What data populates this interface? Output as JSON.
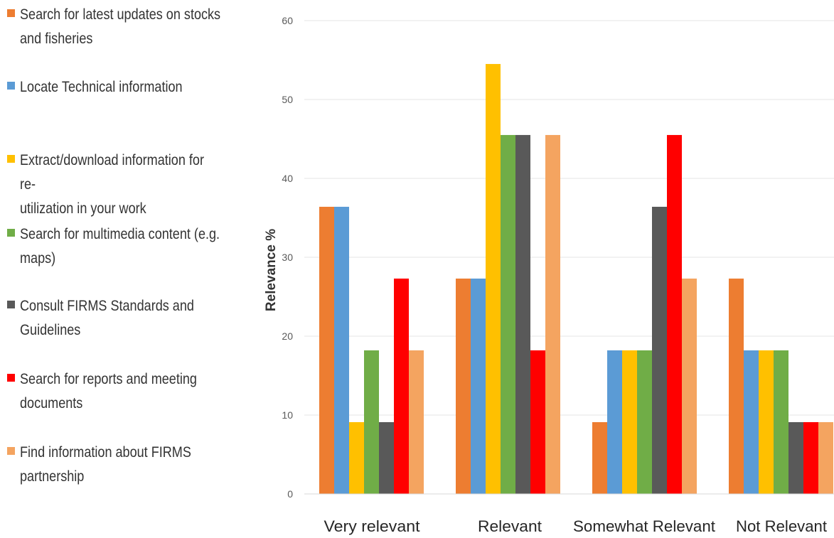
{
  "chart_data": {
    "type": "bar",
    "title": "",
    "xlabel": "",
    "ylabel": "Relevance %",
    "ylim": [
      0,
      60
    ],
    "yticks": [
      0,
      10,
      20,
      30,
      40,
      50,
      60
    ],
    "grid": true,
    "legend_position": "left",
    "categories": [
      "Very relevant",
      "Relevant",
      "Somewhat Relevant",
      "Not Relevant"
    ],
    "series": [
      {
        "name": "Search for latest updates on stocks and fisheries",
        "color": "#ED7D31",
        "values": [
          36.4,
          27.3,
          9.1,
          27.3
        ]
      },
      {
        "name": "Locate Technical information",
        "color": "#5B9BD5",
        "values": [
          36.4,
          27.3,
          18.2,
          18.2
        ]
      },
      {
        "name": "Extract/download information for re-utilization in your work",
        "color": "#FFC000",
        "values": [
          9.1,
          54.5,
          18.2,
          18.2
        ]
      },
      {
        "name": "Search for multimedia content (e.g. maps)",
        "color": "#70AD47",
        "values": [
          18.2,
          45.5,
          18.2,
          18.2
        ]
      },
      {
        "name": "Consult FIRMS Standards and Guidelines",
        "color": "#595959",
        "values": [
          9.1,
          45.5,
          36.4,
          9.1
        ]
      },
      {
        "name": "Search for reports and meeting documents",
        "color": "#FF0000",
        "values": [
          27.3,
          18.2,
          45.5,
          9.1
        ]
      },
      {
        "name": "Find information about FIRMS partnership",
        "color": "#F4A460",
        "values": [
          18.2,
          45.5,
          27.3,
          9.1
        ]
      }
    ]
  },
  "legend": {
    "items": [
      {
        "label": "Search for latest updates on stocks\nand fisheries",
        "color": "#ED7D31"
      },
      {
        "label": "Locate Technical information",
        "color": "#5B9BD5"
      },
      {
        "label": "Extract/download information for re-\nutilization in your work",
        "color": "#FFC000"
      },
      {
        "label": "Search for multimedia content (e.g.\nmaps)",
        "color": "#70AD47"
      },
      {
        "label": "Consult FIRMS Standards and\nGuidelines",
        "color": "#595959"
      },
      {
        "label": "Search for reports and meeting\ndocuments",
        "color": "#FF0000"
      },
      {
        "label": "Find information about FIRMS\npartnership",
        "color": "#F4A460"
      }
    ]
  }
}
